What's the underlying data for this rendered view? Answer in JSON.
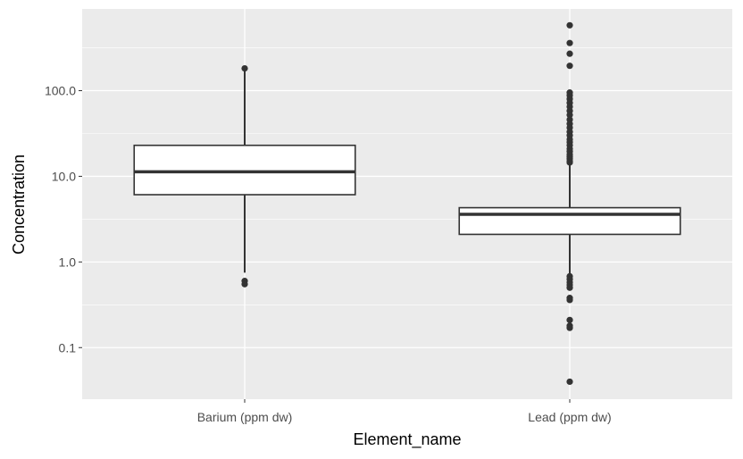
{
  "chart_data": {
    "type": "boxplot",
    "xlabel": "Element_name",
    "ylabel": "Concentration",
    "y_scale": "log10",
    "ylim": [
      0.025,
      900
    ],
    "y_ticks": [
      {
        "value": 0.1,
        "label": "0.1"
      },
      {
        "value": 1,
        "label": "1.0"
      },
      {
        "value": 10,
        "label": "10.0"
      },
      {
        "value": 100,
        "label": "100.0"
      }
    ],
    "y_minor_ticks": [
      0.316,
      3.16,
      31.6,
      316
    ],
    "grid": true,
    "categories": [
      "Barium (ppm dw)",
      "Lead (ppm dw)"
    ],
    "boxes": [
      {
        "category": "Barium (ppm dw)",
        "whisker_low": 0.75,
        "q1": 6.1,
        "median": 11.3,
        "q3": 23,
        "whisker_high": 185,
        "outliers": [
          0.6,
          0.55,
          182
        ]
      },
      {
        "category": "Lead (ppm dw)",
        "whisker_low": 0.72,
        "q1": 2.1,
        "median": 3.6,
        "q3": 4.3,
        "whisker_high": 14,
        "outliers": [
          580,
          360,
          270,
          195,
          95,
          88,
          80,
          72,
          65,
          58,
          52,
          46,
          41,
          37,
          33,
          30,
          27,
          25,
          23,
          21,
          19.5,
          18,
          17,
          16,
          15,
          14.5,
          0.68,
          0.63,
          0.58,
          0.54,
          0.5,
          0.38,
          0.36,
          0.21,
          0.18,
          0.17,
          0.04
        ]
      }
    ],
    "colors": {
      "panel_background": "#ebebeb",
      "grid": "#ffffff",
      "box_fill": "#ffffff",
      "box_stroke": "#333333",
      "point": "#333333",
      "tick_text": "#4d4d4d"
    }
  }
}
